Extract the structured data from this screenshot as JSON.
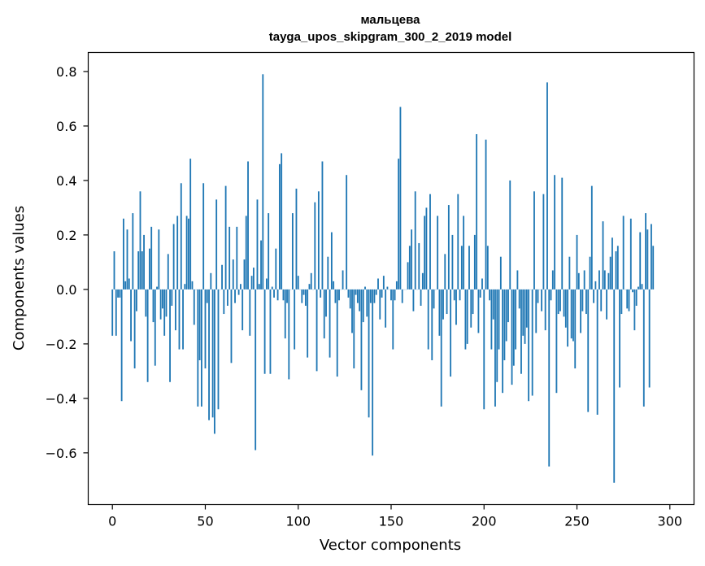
{
  "chart_data": {
    "type": "bar",
    "title": "мальцева",
    "subtitle": "tayga_upos_skipgram_300_2_2019 model",
    "xlabel": "Vector components",
    "ylabel": "Components values",
    "xlim": [
      -13,
      313
    ],
    "ylim": [
      -0.79,
      0.87
    ],
    "xticks": [
      0,
      50,
      100,
      150,
      200,
      250,
      300
    ],
    "xtick_labels": [
      "0",
      "50",
      "100",
      "150",
      "200",
      "250",
      "300"
    ],
    "yticks": [
      -0.6,
      -0.4,
      -0.2,
      0.0,
      0.2,
      0.4,
      0.6,
      0.8
    ],
    "ytick_labels": [
      "−0.6",
      "−0.4",
      "−0.2",
      "0.0",
      "0.2",
      "0.4",
      "0.6",
      "0.8"
    ],
    "grid": false,
    "bar_color": "#1f77b4",
    "values": [
      -0.17,
      0.14,
      -0.17,
      -0.03,
      -0.03,
      -0.41,
      0.26,
      0.03,
      0.22,
      0.04,
      -0.19,
      0.28,
      -0.29,
      -0.08,
      0.14,
      0.36,
      0.14,
      0.2,
      -0.1,
      -0.34,
      0.15,
      0.23,
      -0.12,
      -0.28,
      0.01,
      0.22,
      -0.11,
      -0.07,
      -0.17,
      -0.1,
      0.13,
      -0.34,
      -0.06,
      0.24,
      -0.15,
      0.27,
      -0.22,
      0.39,
      -0.22,
      0.02,
      0.27,
      0.26,
      0.48,
      0.03,
      -0.13,
      0.0,
      -0.43,
      -0.26,
      -0.43,
      0.39,
      -0.29,
      -0.05,
      -0.48,
      0.06,
      -0.47,
      -0.53,
      0.33,
      -0.44,
      0.0,
      0.09,
      -0.09,
      0.38,
      -0.06,
      0.23,
      -0.27,
      0.11,
      -0.05,
      0.23,
      -0.02,
      0.02,
      -0.15,
      0.11,
      0.27,
      0.47,
      -0.17,
      0.05,
      0.08,
      -0.59,
      0.33,
      0.02,
      0.18,
      0.79,
      -0.31,
      0.04,
      0.28,
      -0.31,
      0.01,
      -0.03,
      0.15,
      -0.04,
      0.46,
      0.5,
      -0.04,
      -0.18,
      -0.05,
      -0.33,
      0.0,
      0.28,
      -0.22,
      0.37,
      0.05,
      0.0,
      -0.05,
      -0.02,
      -0.06,
      -0.25,
      0.02,
      0.06,
      0.0,
      0.32,
      -0.3,
      0.36,
      -0.03,
      0.47,
      -0.18,
      -0.1,
      0.12,
      -0.25,
      0.21,
      0.03,
      -0.05,
      -0.32,
      -0.04,
      0.0,
      0.07,
      0.0,
      0.42,
      -0.03,
      -0.07,
      -0.16,
      -0.29,
      -0.02,
      -0.05,
      -0.08,
      -0.37,
      -0.12,
      0.01,
      -0.1,
      -0.47,
      -0.05,
      -0.61,
      -0.05,
      -0.02,
      0.04,
      -0.11,
      -0.03,
      0.05,
      -0.14,
      0.01,
      0.0,
      -0.04,
      -0.22,
      -0.04,
      0.03,
      0.48,
      0.67,
      -0.05,
      0.0,
      0.0,
      0.1,
      0.16,
      0.22,
      -0.08,
      0.36,
      0.0,
      0.17,
      -0.06,
      0.06,
      0.27,
      0.3,
      -0.22,
      0.35,
      -0.26,
      -0.07,
      0.0,
      0.27,
      -0.17,
      -0.43,
      -0.11,
      0.13,
      -0.09,
      0.31,
      -0.32,
      0.2,
      -0.04,
      -0.13,
      0.35,
      -0.04,
      0.16,
      0.27,
      -0.22,
      -0.2,
      0.16,
      -0.14,
      -0.09,
      0.2,
      0.57,
      -0.16,
      -0.03,
      0.04,
      -0.44,
      0.55,
      0.16,
      -0.04,
      -0.22,
      -0.11,
      -0.43,
      -0.34,
      -0.22,
      0.12,
      -0.38,
      -0.26,
      -0.19,
      -0.12,
      0.4,
      -0.35,
      -0.28,
      -0.22,
      0.07,
      -0.07,
      -0.31,
      -0.17,
      -0.2,
      -0.14,
      -0.41,
      0.0,
      -0.39,
      0.36,
      -0.16,
      -0.05,
      0.0,
      -0.08,
      0.35,
      -0.15,
      0.76,
      -0.65,
      -0.04,
      0.07,
      0.42,
      -0.38,
      -0.09,
      -0.08,
      0.41,
      -0.1,
      -0.14,
      -0.21,
      0.12,
      -0.18,
      -0.19,
      -0.29,
      0.2,
      0.06,
      -0.16,
      -0.08,
      0.07,
      -0.09,
      -0.45,
      0.12,
      0.38,
      -0.05,
      0.03,
      -0.46,
      0.07,
      -0.08,
      0.25,
      0.07,
      -0.11,
      0.06,
      0.12,
      0.19,
      -0.71,
      0.14,
      0.16,
      -0.36,
      -0.09,
      0.27,
      0.0,
      -0.07,
      -0.08,
      0.26,
      -0.01,
      -0.15,
      -0.06,
      0.01,
      0.21,
      0.02,
      -0.43,
      0.28,
      0.22,
      -0.36,
      0.24,
      0.16
    ]
  }
}
